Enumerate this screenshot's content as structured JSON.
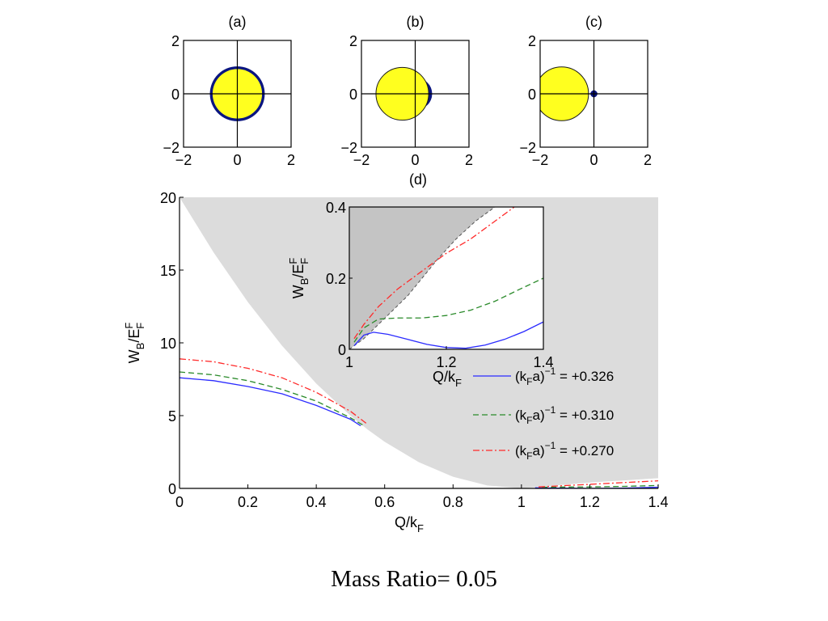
{
  "caption": "Mass Ratio= 0.05",
  "colors": {
    "fermi_disk": "#ffff1f",
    "fermi_edge": "#1a1a1a",
    "bound_region": "#0a1580",
    "shade_main": "#dcdcdc",
    "shade_inset": "#c4c4c4",
    "series_blue": "#2b2bff",
    "series_green": "#2a8a2a",
    "series_red": "#ff2a2a"
  },
  "chart_data": [
    {
      "type": "diagram",
      "panel_label": "(a)",
      "xlim": [
        -2,
        2
      ],
      "ylim": [
        -2,
        2
      ],
      "xticks": [
        "−2",
        "0",
        "2"
      ],
      "yticks": [
        "−2",
        "0",
        "2"
      ],
      "fermi_disk": {
        "center": [
          0,
          0
        ],
        "radius": 0.92
      },
      "bound_region": {
        "type": "ring",
        "center": [
          0,
          0
        ],
        "outer_radius": 1.02
      }
    },
    {
      "type": "diagram",
      "panel_label": "(b)",
      "xlim": [
        -2,
        2
      ],
      "ylim": [
        -2,
        2
      ],
      "xticks": [
        "−2",
        "0",
        "2"
      ],
      "yticks": [
        "−2",
        "0",
        "2"
      ],
      "fermi_disk": {
        "center": [
          -0.48,
          0
        ],
        "radius": 0.98
      },
      "bound_region": {
        "type": "crescent",
        "center": [
          0.05,
          0
        ],
        "radius": 0.58
      }
    },
    {
      "type": "diagram",
      "panel_label": "(c)",
      "xlim": [
        -2,
        2
      ],
      "ylim": [
        -2,
        2
      ],
      "xticks": [
        "−2",
        "0",
        "2"
      ],
      "yticks": [
        "−2",
        "0",
        "2"
      ],
      "fermi_disk": {
        "center": [
          -1.2,
          0
        ],
        "radius": 1.0
      },
      "bound_region": {
        "type": "dot",
        "center": [
          0,
          0
        ],
        "radius": 0.13
      }
    },
    {
      "type": "line",
      "panel_label": "(d)",
      "xlabel": "Q/k",
      "xlabel_sub": "F",
      "ylabel": "W",
      "ylabel_sub": "B",
      "ylabel_tail": "/E",
      "ylabel_tail_sup": "F",
      "ylabel_tail_sub": "F",
      "xlim": [
        0,
        1.4
      ],
      "ylim": [
        0,
        20
      ],
      "xticks": [
        0,
        0.2,
        0.4,
        0.6,
        0.8,
        1,
        1.2,
        1.4
      ],
      "xtick_labels": [
        "0",
        "0.2",
        "0.4",
        "0.6",
        "0.8",
        "1",
        "1.2",
        "1.4"
      ],
      "yticks": [
        0,
        5,
        10,
        15,
        20
      ],
      "ytick_labels": [
        "0",
        "5",
        "10",
        "15",
        "20"
      ],
      "continuum_boundary": {
        "x": [
          0,
          0.1,
          0.2,
          0.3,
          0.4,
          0.5,
          0.55,
          0.6,
          0.7,
          0.8,
          0.9,
          1.0,
          1.1,
          1.2,
          1.3,
          1.4
        ],
        "y": [
          20,
          16.2,
          12.8,
          9.8,
          7.2,
          5.0,
          4.05,
          3.2,
          1.8,
          0.8,
          0.2,
          0,
          0.2,
          0.4,
          0.55,
          0.7
        ]
      },
      "legend_position": "lower-right",
      "series": [
        {
          "name": "+0.326",
          "style": "solid",
          "x": [
            0,
            0.1,
            0.2,
            0.3,
            0.4,
            0.5,
            0.53
          ],
          "y": [
            7.6,
            7.4,
            7.0,
            6.5,
            5.7,
            4.75,
            4.3
          ],
          "x2": [
            1.04,
            1.1,
            1.2,
            1.3,
            1.4
          ],
          "y2": [
            0.04,
            0.02,
            0.0,
            0.02,
            0.08
          ]
        },
        {
          "name": "+0.310",
          "style": "dashed",
          "x": [
            0,
            0.1,
            0.2,
            0.3,
            0.4,
            0.5,
            0.54
          ],
          "y": [
            8.0,
            7.8,
            7.4,
            6.8,
            6.0,
            4.85,
            4.3
          ],
          "x2": [
            1.06,
            1.1,
            1.2,
            1.3,
            1.4
          ],
          "y2": [
            0.08,
            0.09,
            0.1,
            0.14,
            0.2
          ]
        },
        {
          "name": "+0.270",
          "style": "dashdot",
          "x": [
            0,
            0.1,
            0.2,
            0.3,
            0.4,
            0.5,
            0.55
          ],
          "y": [
            8.9,
            8.7,
            8.25,
            7.6,
            6.6,
            5.3,
            4.4
          ],
          "x2": [
            1.05,
            1.1,
            1.2,
            1.3,
            1.4
          ],
          "y2": [
            0.1,
            0.16,
            0.28,
            0.4,
            0.52
          ]
        }
      ],
      "legend_label_prefix": "(k",
      "legend_label_sub": "F",
      "legend_label_mid": "a)",
      "legend_label_sup": "−1",
      "legend_label_eq": " = "
    },
    {
      "type": "line",
      "panel_label": "inset",
      "xlabel": "Q/k",
      "xlabel_sub": "F",
      "ylabel": "W",
      "ylabel_sub": "B",
      "ylabel_tail": "/E",
      "ylabel_tail_sup": "F",
      "ylabel_tail_sub": "F",
      "xlim": [
        1,
        1.4
      ],
      "ylim": [
        0,
        0.4
      ],
      "xticks": [
        1,
        1.2,
        1.4
      ],
      "xtick_labels": [
        "1",
        "1.2",
        "1.4"
      ],
      "yticks": [
        0,
        0.2,
        0.4
      ],
      "ytick_labels": [
        "0",
        "0.2",
        "0.4"
      ],
      "continuum_boundary": {
        "x": [
          1.0,
          1.03,
          1.06,
          1.09,
          1.12,
          1.15,
          1.18,
          1.22,
          1.26,
          1.3
        ],
        "y": [
          0.0,
          0.03,
          0.07,
          0.11,
          0.15,
          0.2,
          0.25,
          0.31,
          0.36,
          0.4
        ]
      },
      "series": [
        {
          "name": "+0.326",
          "style": "solid",
          "x": [
            1.01,
            1.03,
            1.05,
            1.08,
            1.12,
            1.16,
            1.2,
            1.24,
            1.28,
            1.32,
            1.36,
            1.4
          ],
          "y": [
            0.01,
            0.04,
            0.048,
            0.042,
            0.028,
            0.014,
            0.005,
            0.003,
            0.012,
            0.028,
            0.05,
            0.077
          ]
        },
        {
          "name": "+0.310",
          "style": "dashed",
          "x": [
            1.01,
            1.03,
            1.06,
            1.1,
            1.15,
            1.2,
            1.25,
            1.3,
            1.35,
            1.4
          ],
          "y": [
            0.02,
            0.06,
            0.085,
            0.088,
            0.088,
            0.095,
            0.11,
            0.135,
            0.168,
            0.2
          ]
        },
        {
          "name": "+0.270",
          "style": "dashdot",
          "x": [
            1.01,
            1.03,
            1.06,
            1.1,
            1.15,
            1.2,
            1.25,
            1.3,
            1.34
          ],
          "y": [
            0.03,
            0.07,
            0.12,
            0.17,
            0.22,
            0.27,
            0.31,
            0.36,
            0.4
          ]
        }
      ]
    }
  ]
}
